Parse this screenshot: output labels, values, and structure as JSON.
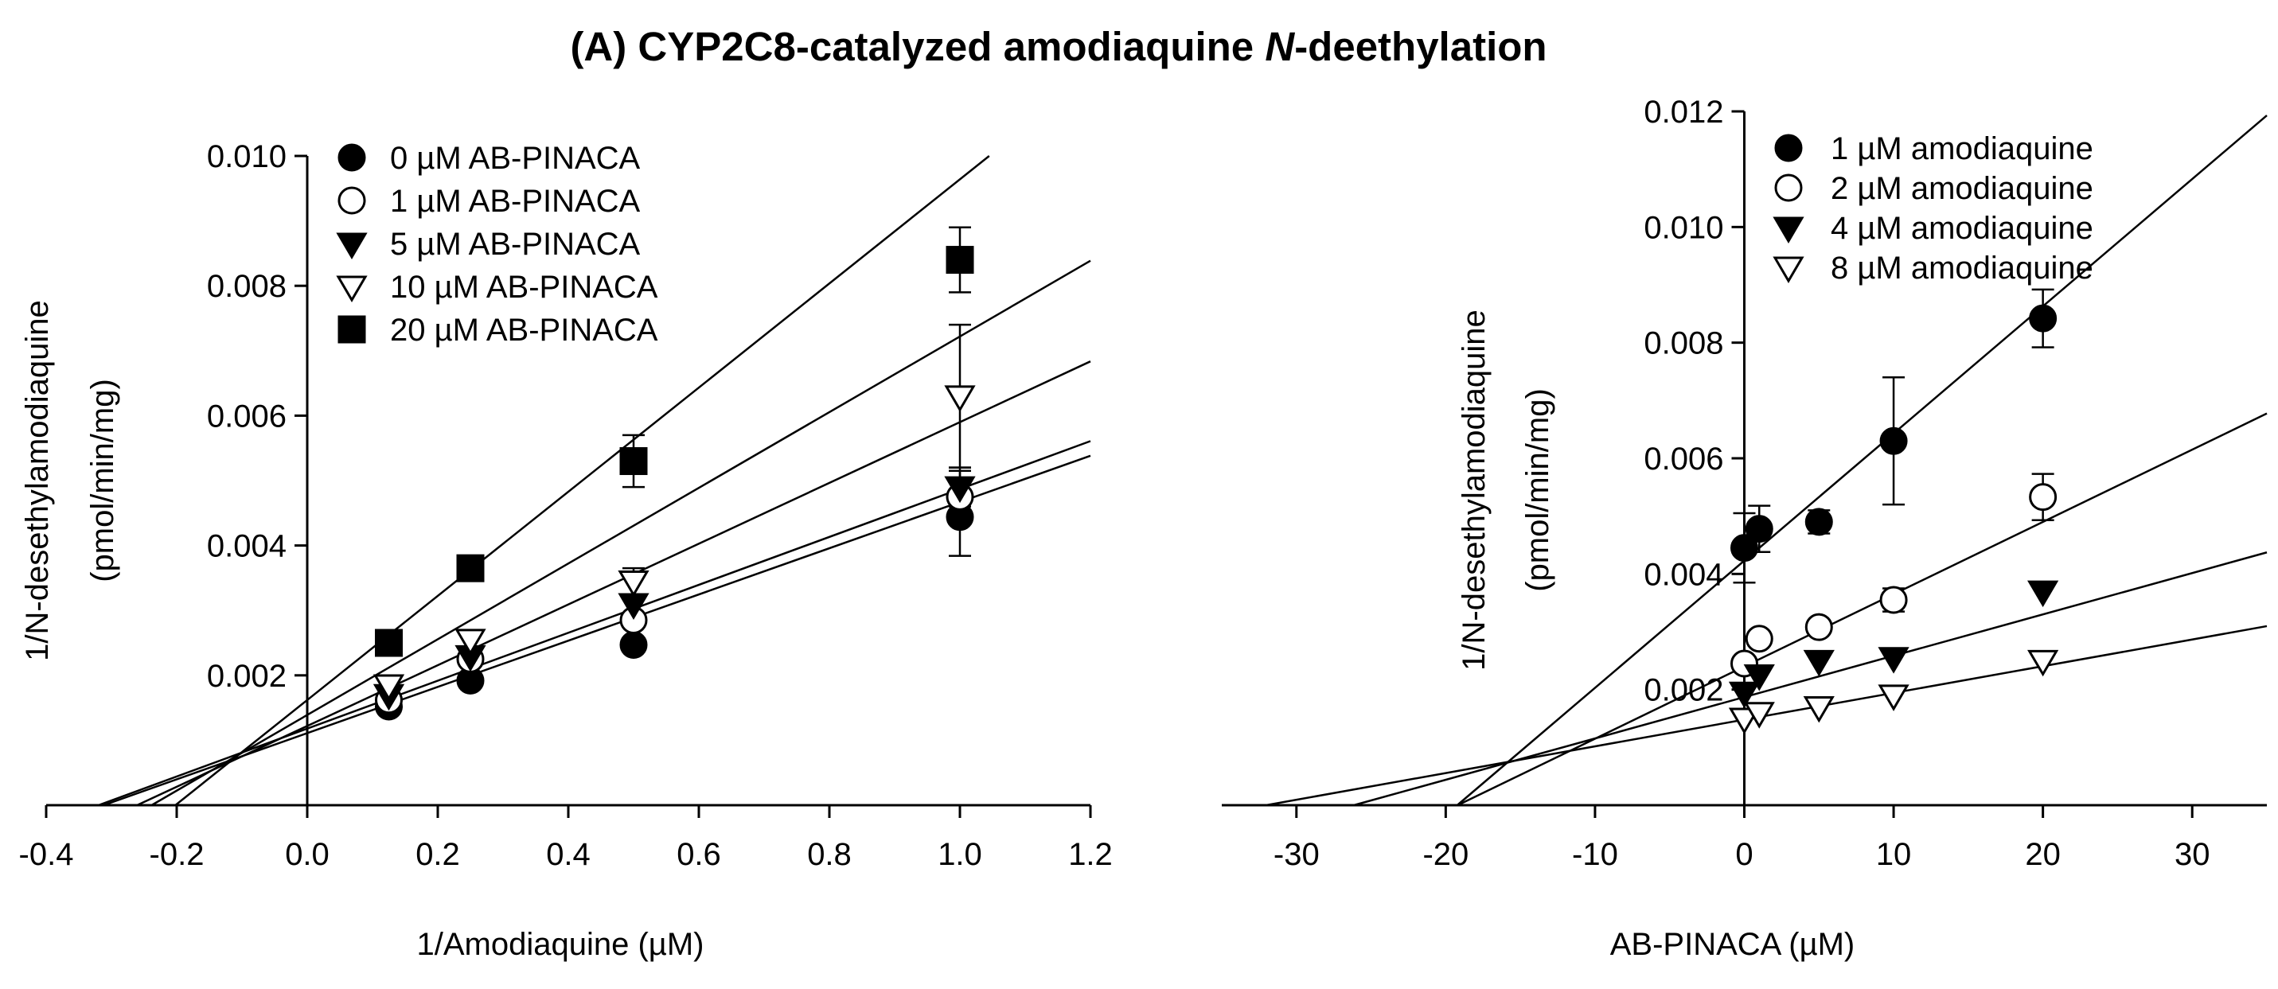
{
  "title": {
    "prefix": "(A) CYP2C8-catalyzed amodiaquine ",
    "italic": "N",
    "suffix": "-deethylation"
  },
  "chart_data": [
    {
      "type": "line",
      "name": "Lineweaver-Burk plot",
      "xlabel": "1/Amodiaquine (µM)",
      "ylabel_line1": "1/N-desethylamodiaquine",
      "ylabel_line2": "(pmol/min/mg)",
      "xlim": [
        -0.4,
        1.2
      ],
      "ylim": [
        0,
        0.01
      ],
      "xticks": [
        -0.4,
        -0.2,
        0.0,
        0.2,
        0.4,
        0.6,
        0.8,
        1.0,
        1.2
      ],
      "xtick_labels": [
        "-0.4",
        "-0.2",
        "0.0",
        "0.2",
        "0.4",
        "0.6",
        "0.8",
        "1.0",
        "1.2"
      ],
      "yticks": [
        0.002,
        0.004,
        0.006,
        0.008,
        0.01
      ],
      "ytick_labels": [
        "0.002",
        "0.004",
        "0.006",
        "0.008",
        "0.010"
      ],
      "legend_position": "top-left",
      "series": [
        {
          "name": "0 µM  AB-PINACA",
          "marker": "circle-filled",
          "x": [
            0.125,
            0.25,
            0.5,
            1.0
          ],
          "y": [
            0.00152,
            0.00192,
            0.00247,
            0.00444
          ],
          "err": [
            0,
            0,
            0,
            0.0006
          ],
          "fit": {
            "slope": 0.00356,
            "intercept": 0.00111
          }
        },
        {
          "name": "1 µM  AB-PINACA",
          "marker": "circle-open",
          "x": [
            0.125,
            0.25,
            0.5,
            1.0
          ],
          "y": [
            0.00162,
            0.00225,
            0.00285,
            0.00475
          ],
          "err": [
            0,
            0,
            0,
            0.0004
          ],
          "fit": {
            "slope": 0.00369,
            "intercept": 0.00118
          }
        },
        {
          "name": "5 µM  AB-PINACA",
          "marker": "triangle-down-filled",
          "x": [
            0.125,
            0.25,
            0.5,
            1.0
          ],
          "y": [
            0.0017,
            0.0023,
            0.0031,
            0.0049
          ],
          "err": [
            0,
            0,
            0,
            0.0003
          ],
          "fit": {
            "slope": 0.00468,
            "intercept": 0.00122
          }
        },
        {
          "name": "10 µM  AB-PINACA",
          "marker": "triangle-down-open",
          "x": [
            0.125,
            0.25,
            0.5,
            1.0
          ],
          "y": [
            0.00185,
            0.00255,
            0.00345,
            0.0063
          ],
          "err": [
            0,
            0,
            0.0002,
            0.0011
          ],
          "fit": {
            "slope": 0.00583,
            "intercept": 0.00139
          }
        },
        {
          "name": "20 µM AB-PINACA",
          "marker": "square-filled",
          "x": [
            0.125,
            0.25,
            0.5,
            1.0
          ],
          "y": [
            0.0025,
            0.00365,
            0.0053,
            0.0084
          ],
          "err": [
            0,
            0,
            0.0004,
            0.0005
          ],
          "fit": {
            "slope": 0.00802,
            "intercept": 0.00162
          }
        }
      ]
    },
    {
      "type": "line",
      "name": "Dixon plot",
      "xlabel": "AB-PINACA (µM)",
      "ylabel_line1": "1/N-desethylamodiaquine",
      "ylabel_line2": "(pmol/min/mg)",
      "xlim": [
        -35,
        35
      ],
      "ylim": [
        0,
        0.012
      ],
      "xticks": [
        -30,
        -20,
        -10,
        0,
        10,
        20,
        30
      ],
      "xtick_labels": [
        "-30",
        "-20",
        "-10",
        "0",
        "10",
        "20",
        "30"
      ],
      "yticks": [
        0.002,
        0.004,
        0.006,
        0.008,
        0.01,
        0.012
      ],
      "ytick_labels": [
        "0.002",
        "0.004",
        "0.006",
        "0.008",
        "0.010",
        "0.012"
      ],
      "legend_position": "top-left",
      "series": [
        {
          "name": "1 µM amodiaquine",
          "marker": "circle-filled",
          "x": [
            0,
            1,
            5,
            10,
            20
          ],
          "y": [
            0.00445,
            0.00478,
            0.0049,
            0.0063,
            0.00842
          ],
          "err": [
            0.0006,
            0.0004,
            0.0002,
            0.0011,
            0.0005
          ],
          "fit": {
            "slope": 0.00022,
            "intercept": 0.00423
          }
        },
        {
          "name": "2 µM amodiaquine",
          "marker": "circle-open",
          "x": [
            0,
            1,
            5,
            10,
            20
          ],
          "y": [
            0.00245,
            0.00288,
            0.00308,
            0.00355,
            0.00533
          ],
          "err": [
            0,
            0,
            0,
            0.0002,
            0.0004
          ],
          "fit": {
            "slope": 0.000125,
            "intercept": 0.0024
          }
        },
        {
          "name": "4 µM amodiaquine",
          "marker": "triangle-down-filled",
          "x": [
            0,
            1,
            5,
            10,
            20
          ],
          "y": [
            0.00195,
            0.00225,
            0.0025,
            0.00255,
            0.0037
          ],
          "err": [
            0,
            0,
            0,
            0,
            0
          ],
          "fit": {
            "slope": 7.15e-05,
            "intercept": 0.00187
          }
        },
        {
          "name": "8 µM amodiaquine",
          "marker": "triangle-down-open",
          "x": [
            0,
            1,
            5,
            10,
            20
          ],
          "y": [
            0.0015,
            0.0016,
            0.0017,
            0.0019,
            0.0025
          ],
          "err": [
            0,
            0,
            0,
            0,
            0
          ],
          "fit": {
            "slope": 4.62e-05,
            "intercept": 0.00148
          }
        }
      ]
    }
  ]
}
